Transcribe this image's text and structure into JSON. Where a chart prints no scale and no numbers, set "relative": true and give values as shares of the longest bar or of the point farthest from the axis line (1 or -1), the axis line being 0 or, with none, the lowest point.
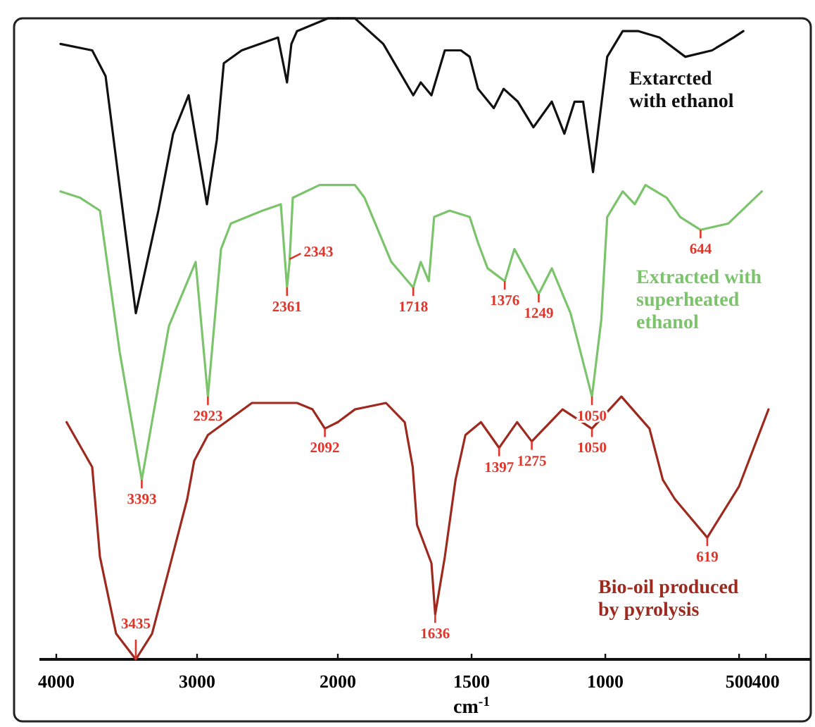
{
  "chart_data": [
    {
      "type": "line",
      "relative": true,
      "xlim": [
        4120,
        2000
      ],
      "xticks": [
        4000,
        3000,
        2000
      ],
      "series": [
        {
          "color": "#111111",
          "x": [
            3970,
            3745,
            3650,
            3540,
            3435,
            3275,
            3170,
            3060,
            2930,
            2860,
            2810,
            2683,
            2425,
            2361,
            2330,
            2290,
            2070,
            2000
          ],
          "values": [
            0.96,
            0.95,
            0.91,
            0.72,
            0.54,
            0.7,
            0.82,
            0.88,
            0.71,
            0.81,
            0.93,
            0.95,
            0.97,
            0.9,
            0.96,
            0.98,
            1.0,
            1.0
          ]
        },
        {
          "color": "#7cc46c",
          "x": [
            3970,
            3830,
            3690,
            3550,
            3393,
            3200,
            3010,
            2923,
            2830,
            2760,
            2535,
            2405,
            2361,
            2343,
            2320,
            2130,
            2000
          ],
          "values": [
            0.73,
            0.72,
            0.7,
            0.48,
            0.28,
            0.52,
            0.62,
            0.41,
            0.64,
            0.68,
            0.7,
            0.71,
            0.58,
            0.62,
            0.72,
            0.74,
            0.74
          ]
        },
        {
          "color": "#9e2a1f",
          "x": [
            3927,
            3745,
            3690,
            3575,
            3435,
            3320,
            3200,
            3070,
            3020,
            2923,
            2610,
            2290,
            2180,
            2092,
            2000
          ],
          "values": [
            0.37,
            0.3,
            0.16,
            0.04,
            0,
            0.04,
            0.14,
            0.25,
            0.31,
            0.35,
            0.4,
            0.4,
            0.39,
            0.36,
            0.37
          ]
        }
      ],
      "annotations": [
        {
          "text": "3393",
          "x": 3393,
          "y": 0.28
        },
        {
          "text": "2923",
          "x": 2923,
          "y": 0.41
        },
        {
          "text": "2361",
          "x": 2361,
          "y": 0.58
        },
        {
          "text": "2343",
          "x": 2343,
          "y": 0.62
        },
        {
          "text": "3435",
          "x": 3435,
          "y": 0
        },
        {
          "text": "2092",
          "x": 2092,
          "y": 0.36
        }
      ]
    },
    {
      "type": "line",
      "relative": true,
      "xlabel": "cm$^{-1}$",
      "xlim": [
        2000,
        232
      ],
      "xticks": [
        1500,
        1000,
        500,
        400
      ],
      "series": [
        {
          "name": "Extarcted with ethanol",
          "color": "#111111",
          "x": [
            2000,
            1936,
            1830,
            1718,
            1690,
            1650,
            1600,
            1540,
            1507,
            1476,
            1417,
            1380,
            1327,
            1269,
            1200,
            1153,
            1115,
            1083,
            1046,
            993,
            935,
            876,
            797,
            701,
            601,
            521,
            484
          ],
          "values": [
            1.0,
            1.0,
            0.96,
            0.88,
            0.9,
            0.88,
            0.95,
            0.95,
            0.94,
            0.89,
            0.86,
            0.89,
            0.87,
            0.83,
            0.87,
            0.82,
            0.87,
            0.87,
            0.76,
            0.94,
            0.98,
            0.98,
            0.97,
            0.94,
            0.95,
            0.97,
            0.98
          ]
        },
        {
          "name": "Extracted with superheated ethanol",
          "color": "#7cc46c",
          "x": [
            2000,
            1936,
            1900,
            1800,
            1718,
            1690,
            1660,
            1640,
            1582,
            1507,
            1476,
            1440,
            1376,
            1340,
            1249,
            1200,
            1130,
            1050,
            1015,
            993,
            935,
            890,
            850,
            770,
            720,
            644,
            540,
            415
          ],
          "values": [
            0.74,
            0.74,
            0.72,
            0.62,
            0.58,
            0.62,
            0.59,
            0.69,
            0.7,
            0.69,
            0.65,
            0.61,
            0.59,
            0.64,
            0.57,
            0.61,
            0.54,
            0.41,
            0.53,
            0.69,
            0.73,
            0.71,
            0.74,
            0.72,
            0.69,
            0.67,
            0.68,
            0.73
          ]
        },
        {
          "name": "Bio-oil produced by pyrolysis",
          "color": "#9e2a1f",
          "x": [
            2000,
            1936,
            1820,
            1750,
            1720,
            1704,
            1650,
            1636,
            1600,
            1560,
            1523,
            1465,
            1397,
            1330,
            1275,
            1160,
            1050,
            940,
            835,
            785,
            740,
            619,
            500,
            390
          ],
          "values": [
            0.37,
            0.39,
            0.4,
            0.37,
            0.3,
            0.21,
            0.15,
            0.07,
            0.16,
            0.28,
            0.35,
            0.37,
            0.33,
            0.37,
            0.34,
            0.39,
            0.36,
            0.41,
            0.36,
            0.28,
            0.25,
            0.19,
            0.27,
            0.39
          ]
        }
      ],
      "annotations": [
        {
          "text": "1718",
          "x": 1718,
          "y": 0.58
        },
        {
          "text": "1376",
          "x": 1376,
          "y": 0.59
        },
        {
          "text": "1249",
          "x": 1249,
          "y": 0.57
        },
        {
          "text": "1050",
          "x": 1050,
          "y": 0.41
        },
        {
          "text": "644",
          "x": 644,
          "y": 0.67
        },
        {
          "text": "1636",
          "x": 1636,
          "y": 0.07
        },
        {
          "text": "1397",
          "x": 1397,
          "y": 0.33
        },
        {
          "text": "1275",
          "x": 1275,
          "y": 0.34
        },
        {
          "text": "1050",
          "x": 1050,
          "y": 0.36
        },
        {
          "text": "619",
          "x": 619,
          "y": 0.19
        }
      ]
    }
  ]
}
